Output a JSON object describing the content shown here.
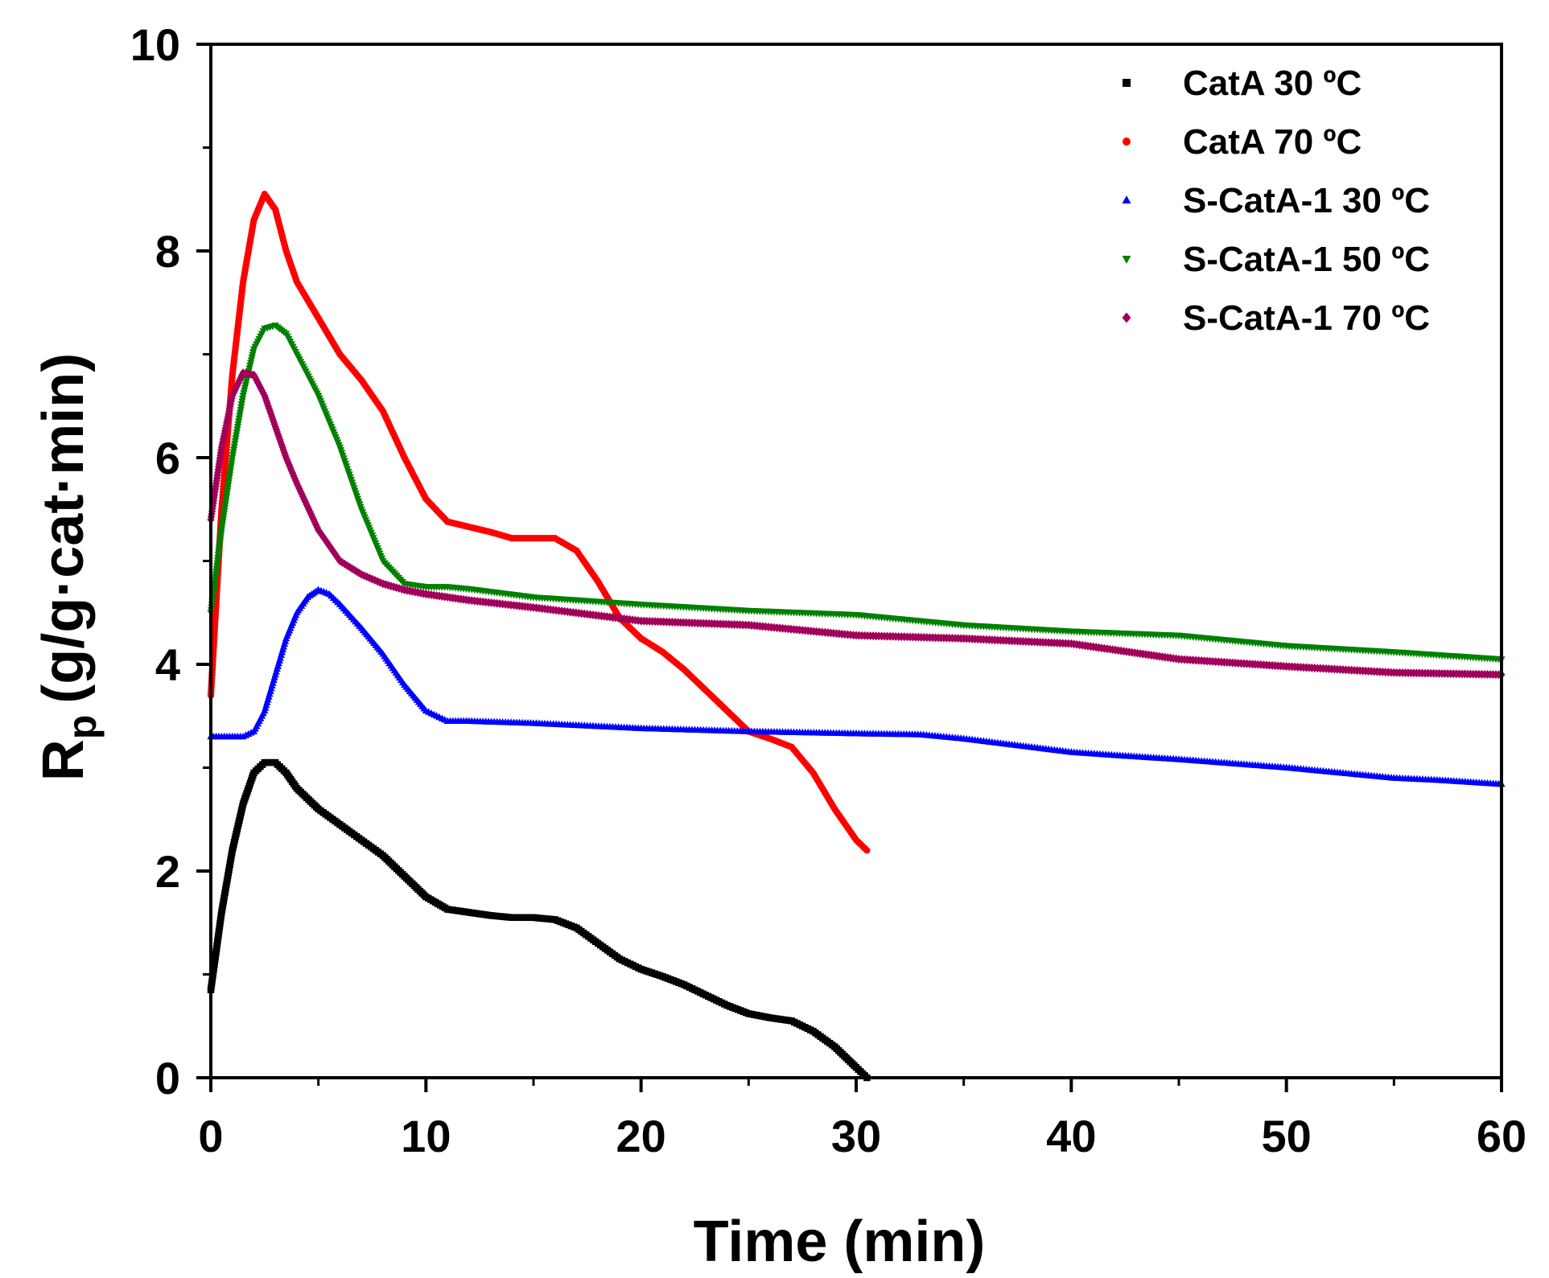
{
  "chart_data": {
    "type": "scatter",
    "title": "",
    "xlabel": "Time (min)",
    "ylabel_main": "R",
    "ylabel_sub": "p",
    "ylabel_rest": "(g/g·cat·min)",
    "xlim": [
      0,
      60
    ],
    "ylim": [
      0,
      10
    ],
    "xticks": [
      0,
      10,
      20,
      30,
      40,
      50,
      60
    ],
    "xtick_labels": [
      "0",
      "10",
      "20",
      "30",
      "40",
      "50",
      "60"
    ],
    "yticks": [
      0,
      2,
      4,
      6,
      8,
      10
    ],
    "ytick_labels": [
      "0",
      "2",
      "4",
      "6",
      "8",
      "10"
    ],
    "legend_position": "top-right",
    "series": [
      {
        "name": "CatA 30 ºC",
        "marker": "square",
        "color": "#000000",
        "x": [
          0,
          0.5,
          1,
          1.5,
          2,
          2.5,
          3,
          3.5,
          4,
          5,
          6,
          7,
          8,
          9,
          10,
          11,
          12,
          13,
          14,
          15,
          16,
          17,
          18,
          19,
          20,
          21,
          22,
          23,
          24,
          25,
          26,
          27,
          28,
          29,
          30,
          30.5
        ],
        "y": [
          0.85,
          1.6,
          2.2,
          2.65,
          2.95,
          3.05,
          3.05,
          2.95,
          2.8,
          2.6,
          2.45,
          2.3,
          2.15,
          1.95,
          1.75,
          1.63,
          1.6,
          1.57,
          1.55,
          1.55,
          1.53,
          1.45,
          1.3,
          1.15,
          1.05,
          0.98,
          0.9,
          0.8,
          0.7,
          0.62,
          0.58,
          0.55,
          0.45,
          0.3,
          0.1,
          0.0
        ]
      },
      {
        "name": "CatA 70 ºC",
        "marker": "circle",
        "color": "#ff0000",
        "x": [
          0,
          0.5,
          1,
          1.5,
          2,
          2.5,
          3,
          3.5,
          4,
          5,
          6,
          7,
          8,
          9,
          10,
          11,
          12,
          13,
          14,
          15,
          16,
          17,
          18,
          19,
          20,
          21,
          22,
          23,
          24,
          25,
          26,
          27,
          28,
          29,
          30,
          30.5
        ],
        "y": [
          3.7,
          5.5,
          6.8,
          7.7,
          8.3,
          8.55,
          8.4,
          8.0,
          7.7,
          7.35,
          7.0,
          6.75,
          6.45,
          6.0,
          5.6,
          5.38,
          5.33,
          5.28,
          5.22,
          5.22,
          5.22,
          5.1,
          4.8,
          4.45,
          4.25,
          4.12,
          3.95,
          3.75,
          3.55,
          3.35,
          3.28,
          3.2,
          2.95,
          2.6,
          2.3,
          2.2
        ]
      },
      {
        "name": "S-CatA-1 30 ºC",
        "marker": "triangle-up",
        "color": "#0000ff",
        "x": [
          0,
          1,
          1.5,
          2,
          2.5,
          3,
          3.5,
          4,
          4.5,
          5,
          5.5,
          6,
          7,
          8,
          9,
          10,
          11,
          12,
          15,
          20,
          25,
          30,
          33,
          35,
          40,
          42,
          45,
          50,
          55,
          57,
          60
        ],
        "y": [
          3.3,
          3.3,
          3.3,
          3.35,
          3.55,
          3.9,
          4.25,
          4.5,
          4.65,
          4.72,
          4.68,
          4.58,
          4.35,
          4.1,
          3.8,
          3.55,
          3.45,
          3.45,
          3.43,
          3.38,
          3.35,
          3.33,
          3.32,
          3.28,
          3.15,
          3.12,
          3.08,
          3.0,
          2.9,
          2.88,
          2.84
        ]
      },
      {
        "name": "S-CatA-1 50 ºC",
        "marker": "triangle-down",
        "color": "#008000",
        "x": [
          0,
          0.5,
          1,
          1.5,
          2,
          2.5,
          3,
          3.5,
          4,
          5,
          6,
          7,
          8,
          9,
          10,
          11,
          12,
          15,
          20,
          25,
          30,
          35,
          40,
          45,
          50,
          55,
          60
        ],
        "y": [
          4.5,
          5.3,
          6.0,
          6.6,
          7.05,
          7.25,
          7.28,
          7.2,
          7.0,
          6.6,
          6.1,
          5.5,
          5.0,
          4.78,
          4.75,
          4.75,
          4.73,
          4.65,
          4.58,
          4.52,
          4.48,
          4.38,
          4.32,
          4.28,
          4.18,
          4.12,
          4.05
        ]
      },
      {
        "name": "S-CatA-1 70 ºC",
        "marker": "diamond",
        "color": "#a0005a",
        "x": [
          0,
          0.5,
          1,
          1.5,
          2,
          2.5,
          3,
          3.5,
          4,
          5,
          6,
          7,
          8,
          9,
          10,
          11,
          12,
          15,
          20,
          25,
          30,
          35,
          40,
          45,
          50,
          55,
          60
        ],
        "y": [
          5.4,
          6.1,
          6.6,
          6.82,
          6.8,
          6.6,
          6.3,
          6.0,
          5.75,
          5.3,
          5.0,
          4.87,
          4.78,
          4.72,
          4.68,
          4.65,
          4.62,
          4.55,
          4.42,
          4.38,
          4.28,
          4.25,
          4.2,
          4.05,
          3.98,
          3.92,
          3.9
        ]
      }
    ]
  }
}
